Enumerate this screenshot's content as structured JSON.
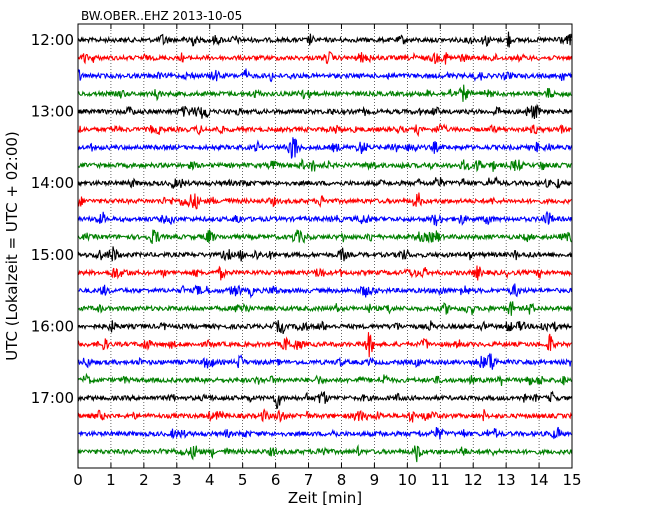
{
  "chart_data": {
    "type": "line",
    "title": "BW.OBER..EHZ 2013-10-05",
    "xlabel": "Zeit  [min]",
    "ylabel": "UTC (Lokalzeit = UTC + 02:00)",
    "xlim": [
      0,
      15
    ],
    "x_ticks": [
      "0",
      "1",
      "2",
      "3",
      "4",
      "5",
      "6",
      "7",
      "8",
      "9",
      "10",
      "11",
      "12",
      "13",
      "14",
      "15"
    ],
    "y_tick_labels": [
      "12:00",
      "13:00",
      "14:00",
      "15:00",
      "16:00",
      "17:00"
    ],
    "trace_interval_min": 15,
    "grid": "vertical dotted at each minute",
    "legend": "none",
    "series_colors": [
      "#000000",
      "#ff0000",
      "#0000ff",
      "#008000"
    ],
    "traces": [
      "12:00",
      "12:15",
      "12:30",
      "12:45",
      "13:00",
      "13:15",
      "13:30",
      "13:45",
      "14:00",
      "14:15",
      "14:30",
      "14:45",
      "15:00",
      "15:15",
      "15:30",
      "15:45",
      "16:00",
      "16:15",
      "16:30",
      "16:45",
      "17:00",
      "17:15",
      "17:30",
      "17:45"
    ]
  }
}
